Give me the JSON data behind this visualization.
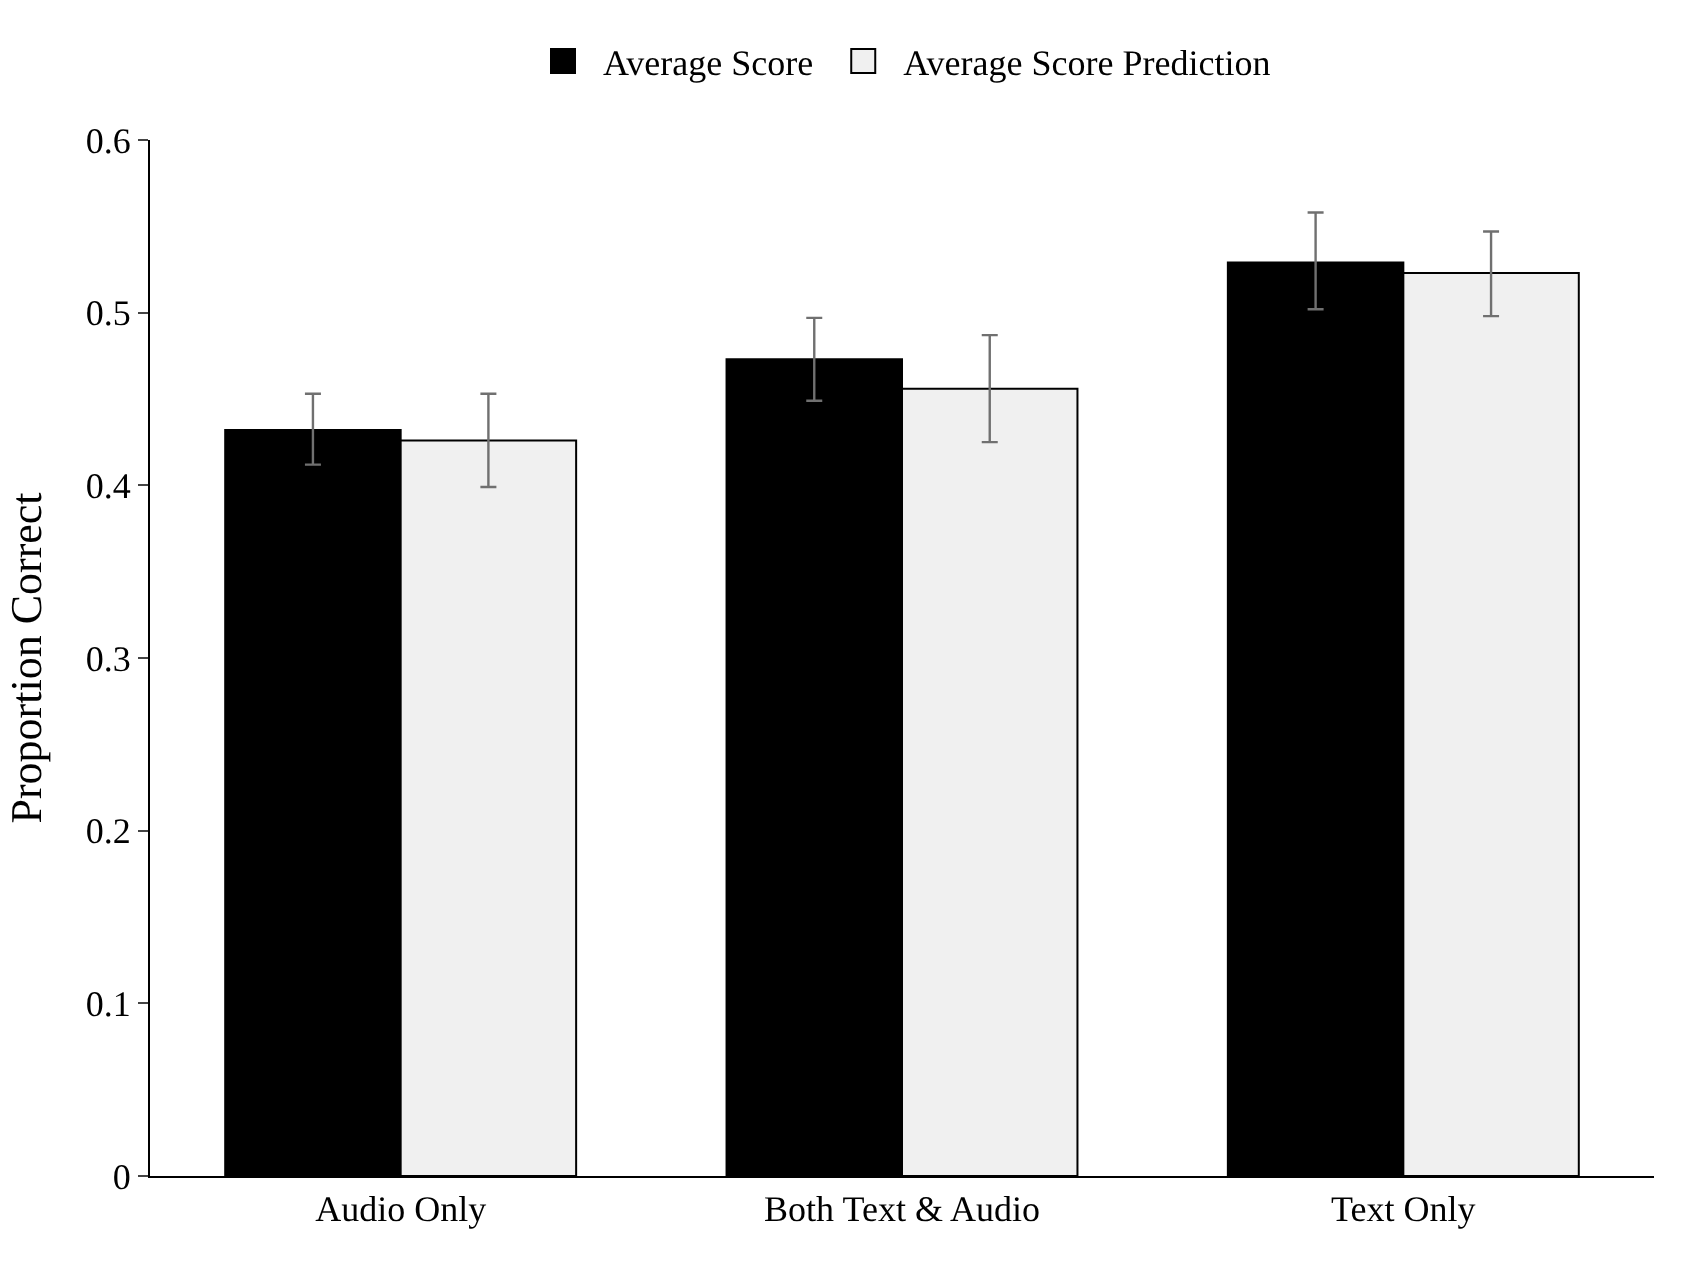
{
  "chart_data": {
    "type": "bar",
    "ylabel": "Proportion Correct",
    "categories": [
      "Audio Only",
      "Both Text & Audio",
      "Text Only"
    ],
    "series": [
      {
        "name": "Average Score",
        "color": "#000000",
        "values": [
          0.432,
          0.473,
          0.529
        ],
        "errors": [
          [
            0.412,
            0.453
          ],
          [
            0.449,
            0.497
          ],
          [
            0.502,
            0.558
          ]
        ]
      },
      {
        "name": "Average Score Prediction",
        "color": "#f0f0f0",
        "values": [
          0.426,
          0.456,
          0.523
        ],
        "errors": [
          [
            0.399,
            0.453
          ],
          [
            0.425,
            0.487
          ],
          [
            0.498,
            0.547
          ]
        ]
      }
    ],
    "ylim": [
      0,
      0.6
    ],
    "yticks": [
      {
        "value": 0,
        "label": "0"
      },
      0.1,
      0.2,
      0.3,
      0.4,
      0.5,
      0.6
    ],
    "legend": "top"
  }
}
